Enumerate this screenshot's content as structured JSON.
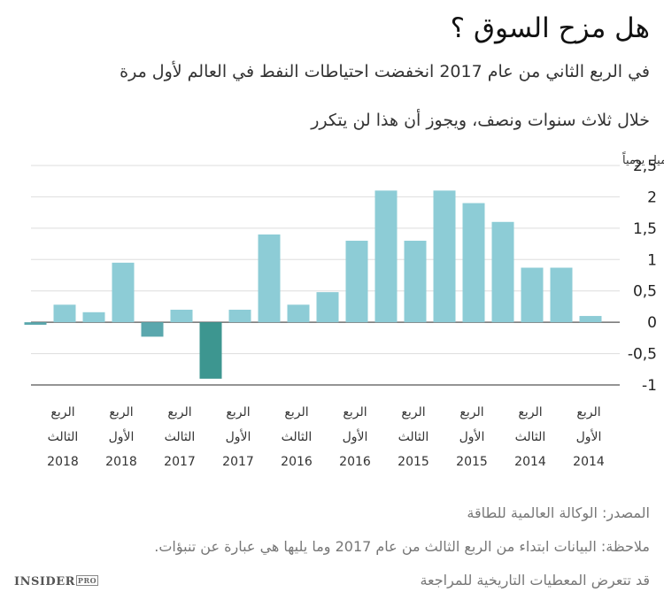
{
  "header": {
    "title": "هل مزح السوق ؟",
    "subtitle_line1": "في الربع الثاني من عام 2017 انخفضت احتياطات النفط في العالم لأول مرة",
    "subtitle_line2": "خلال ثلاث سنوات ونصف، ويجوز أن هذا لن يتكرر"
  },
  "chart_data": {
    "type": "bar",
    "ylabel": "مليار برميل يومياً",
    "ylim": [
      -1,
      2.5
    ],
    "yticks": [
      "2,5",
      "2",
      "1,5",
      "1",
      "0,5",
      "0",
      "-0,5",
      "-1"
    ],
    "ytick_values": [
      2.5,
      2,
      1.5,
      1,
      0.5,
      0,
      -0.5,
      -1
    ],
    "grid": "horizontal",
    "categories": [
      "2014-Q1",
      "2014-Q2",
      "2014-Q3",
      "2014-Q4",
      "2015-Q1",
      "2015-Q2",
      "2015-Q3",
      "2015-Q4",
      "2016-Q1",
      "2016-Q2",
      "2016-Q3",
      "2016-Q4",
      "2017-Q1",
      "2017-Q2",
      "2017-Q3",
      "2017-Q4",
      "2018-Q1",
      "2018-Q2",
      "2018-Q3",
      "2018-Q4"
    ],
    "values": [
      0.1,
      0.87,
      0.87,
      1.6,
      1.9,
      2.1,
      1.3,
      2.1,
      1.3,
      0.48,
      0.28,
      1.4,
      0.2,
      -0.9,
      0.2,
      -0.23,
      0.95,
      0.16,
      0.28,
      -0.04
    ],
    "highlight_index": 13,
    "tick_labels": [
      {
        "line1": "الربع",
        "line2": "الأول",
        "line3": "2014"
      },
      {
        "line1": "الربع",
        "line2": "الثالث",
        "line3": "2014"
      },
      {
        "line1": "الربع",
        "line2": "الأول",
        "line3": "2015"
      },
      {
        "line1": "الربع",
        "line2": "الثالث",
        "line3": "2015"
      },
      {
        "line1": "الربع",
        "line2": "الأول",
        "line3": "2016"
      },
      {
        "line1": "الربع",
        "line2": "الثالث",
        "line3": "2016"
      },
      {
        "line1": "الربع",
        "line2": "الأول",
        "line3": "2017"
      },
      {
        "line1": "الربع",
        "line2": "الثالث",
        "line3": "2017"
      },
      {
        "line1": "الربع",
        "line2": "الأول",
        "line3": "2018"
      },
      {
        "line1": "الربع",
        "line2": "الثالث",
        "line3": "2018"
      }
    ],
    "colors": {
      "bar": "#8dccd6",
      "negative_highlight": "#3d9690",
      "negative": "#5aa7ad"
    }
  },
  "footer": {
    "source": "المصدر: الوكالة العالمية للطاقة",
    "note": "ملاحظة: البيانات ابتداء من الربع الثالث من عام 2017 وما يليها هي عبارة عن تنبؤات.",
    "revision": "قد تتعرض المعطيات التاريخية للمراجعة"
  },
  "branding": {
    "logo_text": "INSIDER",
    "logo_badge": "PRO"
  }
}
